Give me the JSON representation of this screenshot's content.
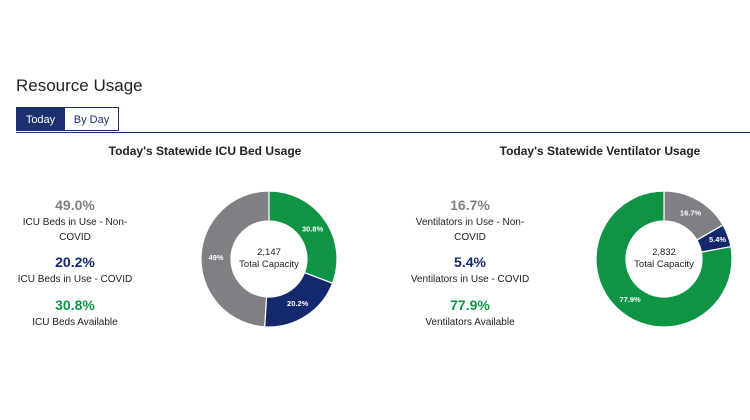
{
  "section": {
    "title": "Resource Usage",
    "tabs": [
      {
        "label": "Today",
        "active": true
      },
      {
        "label": "By Day",
        "active": false
      }
    ]
  },
  "colors": {
    "non_covid": "#7e8083",
    "covid": "#14286e",
    "available": "#0f9446",
    "accent": "#1c2f6e"
  },
  "panels": [
    {
      "title": "Today's Statewide ICU Bed Usage",
      "stats": [
        {
          "pct": "49.0%",
          "label_line1": "ICU Beds in Use - Non-",
          "label_line2": "COVID",
          "color": "#7e8083"
        },
        {
          "pct": "20.2%",
          "label_line1": "ICU Beds in Use - COVID",
          "label_line2": "",
          "color": "#14286e"
        },
        {
          "pct": "30.8%",
          "label_line1": "ICU Beds Available",
          "label_line2": "",
          "color": "#0f9446"
        }
      ],
      "center_value": "2,147",
      "center_label": "Total Capacity"
    },
    {
      "title": "Today's Statewide Ventilator Usage",
      "stats": [
        {
          "pct": "16.7%",
          "label_line1": "Ventilators in Use - Non-",
          "label_line2": "COVID",
          "color": "#7e8083"
        },
        {
          "pct": "5.4%",
          "label_line1": "Ventilators in Use - COVID",
          "label_line2": "",
          "color": "#14286e"
        },
        {
          "pct": "77.9%",
          "label_line1": "Ventilators Available",
          "label_line2": "",
          "color": "#0f9446"
        }
      ],
      "center_value": "2,832",
      "center_label": "Total Capacity"
    }
  ],
  "chart_data": [
    {
      "type": "pie",
      "title": "Today's Statewide ICU Bed Usage",
      "categories": [
        "ICU Beds in Use - Non-COVID",
        "ICU Beds in Use - COVID",
        "ICU Beds Available"
      ],
      "values": [
        49.0,
        20.2,
        30.8
      ],
      "labels": [
        "49%",
        "20.2%",
        "30.8%"
      ],
      "colors": [
        "#7e8083",
        "#14286e",
        "#0f9446"
      ],
      "center_text": [
        "2,147",
        "Total Capacity"
      ]
    },
    {
      "type": "pie",
      "title": "Today's Statewide Ventilator Usage",
      "categories": [
        "Ventilators in Use - Non-COVID",
        "Ventilators in Use - COVID",
        "Ventilators Available"
      ],
      "values": [
        16.7,
        5.4,
        77.9
      ],
      "labels": [
        "16.7%",
        "5.4%",
        "77.9%"
      ],
      "colors": [
        "#7e8083",
        "#14286e",
        "#0f9446"
      ],
      "center_text": [
        "2,832",
        "Total Capacity"
      ]
    }
  ]
}
